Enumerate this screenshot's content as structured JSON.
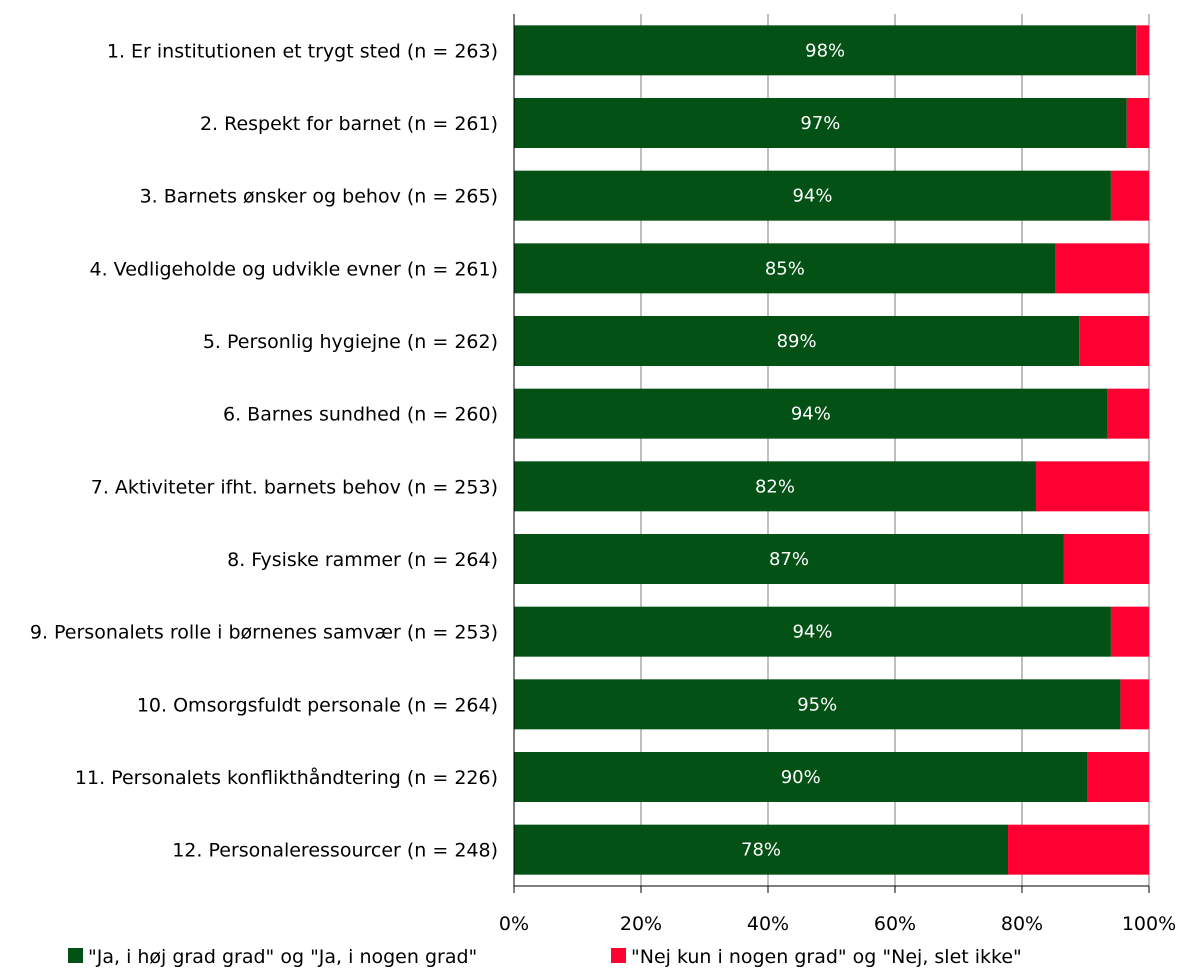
{
  "chart_data": {
    "type": "bar",
    "orientation": "horizontal",
    "stacked": true,
    "categories": [
      "1. Er institutionen et trygt sted (n = 263)",
      "2. Respekt for barnet (n = 261)",
      "3. Barnets ønsker og behov (n = 265)",
      "4. Vedligeholde og udvikle evner (n = 261)",
      "5. Personlig hygiejne (n = 262)",
      "6. Barnes sundhed (n = 260)",
      "7. Aktiviteter ifht. barnets behov (n = 253)",
      "8. Fysiske rammer (n = 264)",
      "9. Personalets rolle i børnenes samvær (n = 253)",
      "10. Omsorgsfuldt personale (n = 264)",
      "11. Personalets konflikthåndtering (n = 226)",
      "12. Personaleressourcer (n = 248)"
    ],
    "series": [
      {
        "name": "\"Ja, i høj grad grad\" og \"Ja, i nogen grad\"",
        "color": "#035115",
        "values": [
          98,
          96.5,
          94,
          85.3,
          89,
          93.5,
          82.2,
          86.6,
          94,
          95.5,
          90.3,
          77.8
        ],
        "labels": [
          "98%",
          "97%",
          "94%",
          "85%",
          "89%",
          "94%",
          "82%",
          "87%",
          "94%",
          "95%",
          "90%",
          "78%"
        ]
      },
      {
        "name": "\"Nej kun i nogen grad\" og \"Nej, slet ikke\"",
        "color": "#ff0033",
        "values": [
          2,
          3.5,
          6,
          14.7,
          11,
          6.5,
          17.8,
          13.4,
          6,
          4.5,
          9.7,
          22.2
        ]
      }
    ],
    "x_ticks": [
      "0%",
      "20%",
      "40%",
      "60%",
      "80%",
      "100%"
    ],
    "xlim": [
      0,
      100
    ],
    "grid": "vertical",
    "legend_position": "bottom"
  }
}
